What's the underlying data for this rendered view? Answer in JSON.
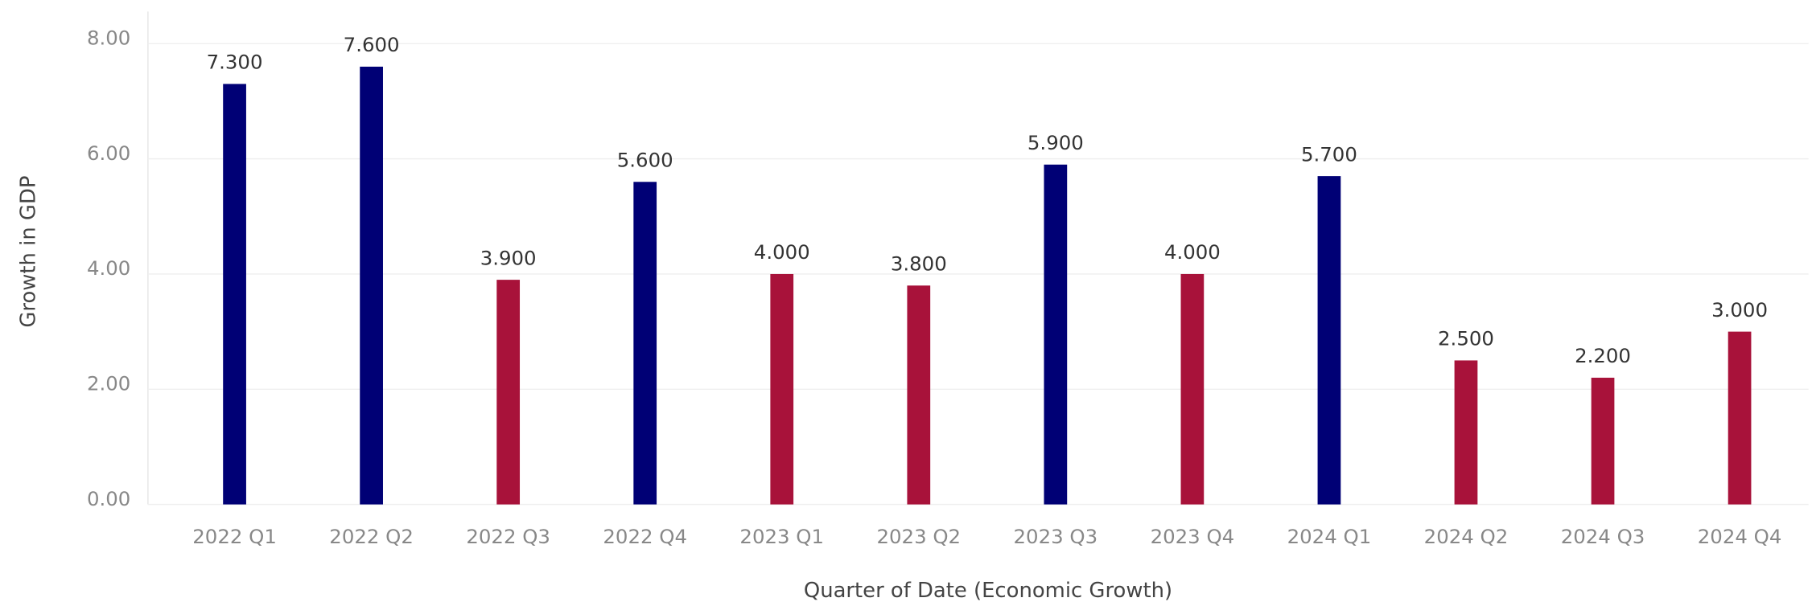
{
  "chart_data": {
    "type": "bar",
    "categories": [
      "2022 Q1",
      "2022 Q2",
      "2022 Q3",
      "2022 Q4",
      "2023 Q1",
      "2023 Q2",
      "2023 Q3",
      "2023 Q4",
      "2024 Q1",
      "2024 Q2",
      "2024 Q3",
      "2024 Q4"
    ],
    "values": [
      7.3,
      7.6,
      3.9,
      5.6,
      4.0,
      3.8,
      5.9,
      4.0,
      5.7,
      2.5,
      2.2,
      3.0
    ],
    "value_labels": [
      "7.300",
      "7.600",
      "3.900",
      "5.600",
      "4.000",
      "3.800",
      "5.900",
      "4.000",
      "5.700",
      "2.500",
      "2.200",
      "3.000"
    ],
    "colors": [
      "#000075",
      "#000075",
      "#a8123a",
      "#000075",
      "#a8123a",
      "#a8123a",
      "#000075",
      "#a8123a",
      "#000075",
      "#a8123a",
      "#a8123a",
      "#a8123a"
    ],
    "xlabel": "Quarter of Date (Economic Growth)",
    "ylabel": "Growth in GDP",
    "ylim": [
      0,
      8.5
    ],
    "yticks": [
      {
        "value": 0,
        "label": "0.00"
      },
      {
        "value": 2,
        "label": "2.00"
      },
      {
        "value": 4,
        "label": "4.00"
      },
      {
        "value": 6,
        "label": "6.00"
      },
      {
        "value": 8,
        "label": "8.00"
      }
    ],
    "grid": true
  }
}
